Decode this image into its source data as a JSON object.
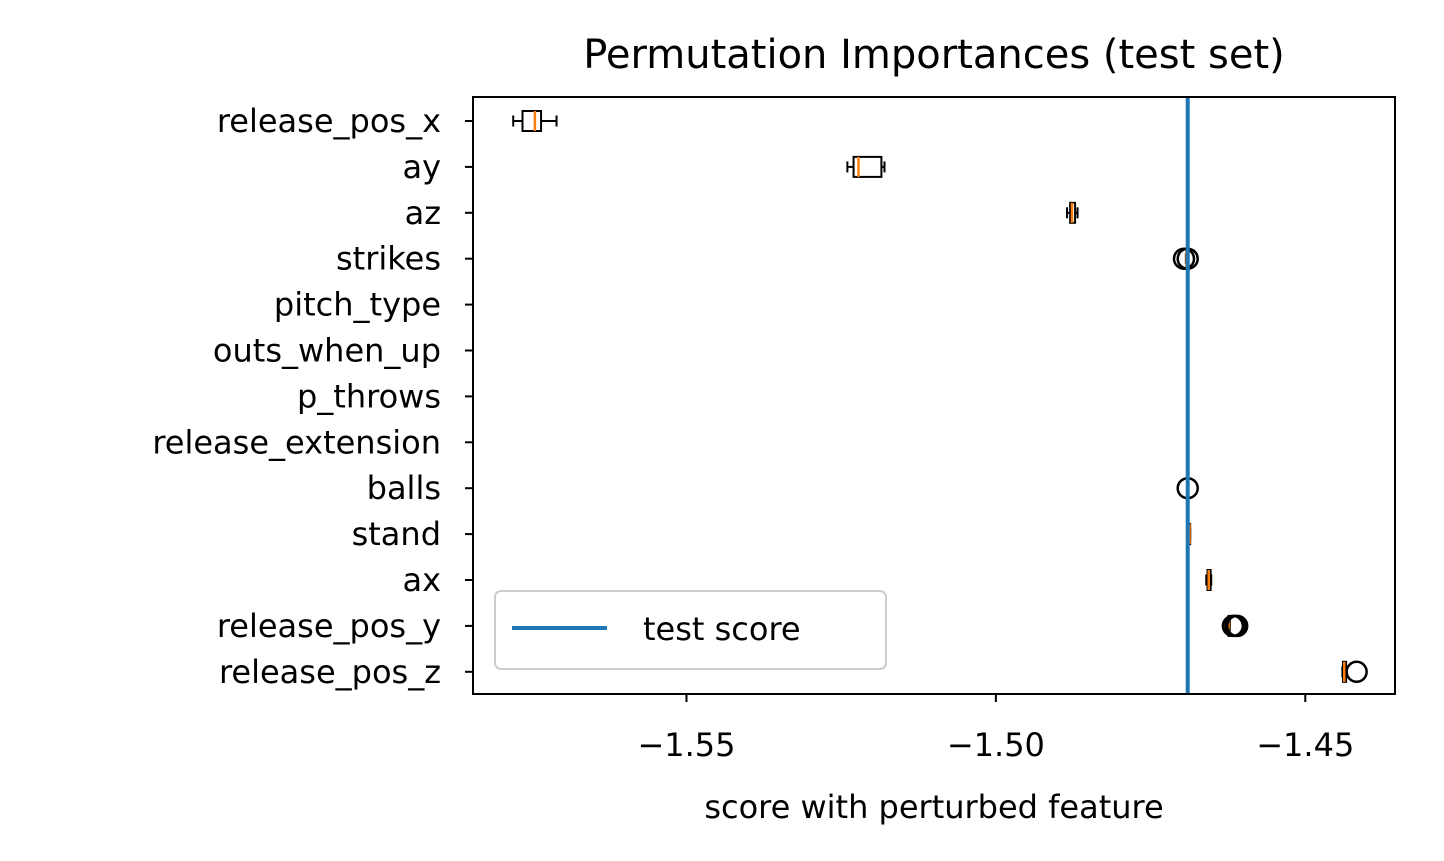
{
  "chart_data": {
    "type": "boxplot",
    "orientation": "horizontal",
    "title": "Permutation Importances (test set)",
    "xlabel": "score with perturbed feature",
    "ylabel": "",
    "xlim": [
      -1.5845,
      -1.4355
    ],
    "xticks": [
      -1.55,
      -1.5,
      -1.45
    ],
    "xtick_labels": [
      "−1.55",
      "−1.50",
      "−1.45"
    ],
    "grid": false,
    "reference_line": {
      "name": "test score",
      "value": -1.469,
      "color": "#1f77b4"
    },
    "legend": {
      "position": "lower-left",
      "entries": [
        "test score"
      ]
    },
    "median_color": "#ff7f0e",
    "features": [
      {
        "name": "release_pos_x",
        "whisker_low": -1.578,
        "q1": -1.5765,
        "median": -1.5745,
        "q3": -1.5735,
        "whisker_high": -1.571,
        "outliers": []
      },
      {
        "name": "ay",
        "whisker_low": -1.524,
        "q1": -1.523,
        "median": -1.5222,
        "q3": -1.5185,
        "whisker_high": -1.518,
        "outliers": []
      },
      {
        "name": "az",
        "whisker_low": -1.4885,
        "q1": -1.488,
        "median": -1.4877,
        "q3": -1.4872,
        "whisker_high": -1.4868,
        "outliers": []
      },
      {
        "name": "strikes",
        "whisker_low": -1.4693,
        "q1": -1.4692,
        "median": -1.4692,
        "q3": -1.4692,
        "whisker_high": -1.4692,
        "outliers": [
          -1.469,
          -1.4696
        ]
      },
      {
        "name": "pitch_type",
        "whisker_low": -1.469,
        "q1": -1.469,
        "median": -1.469,
        "q3": -1.469,
        "whisker_high": -1.469,
        "outliers": []
      },
      {
        "name": "outs_when_up",
        "whisker_low": -1.469,
        "q1": -1.469,
        "median": -1.469,
        "q3": -1.469,
        "whisker_high": -1.469,
        "outliers": []
      },
      {
        "name": "p_throws",
        "whisker_low": -1.469,
        "q1": -1.469,
        "median": -1.469,
        "q3": -1.469,
        "whisker_high": -1.469,
        "outliers": []
      },
      {
        "name": "release_extension",
        "whisker_low": -1.469,
        "q1": -1.469,
        "median": -1.469,
        "q3": -1.469,
        "whisker_high": -1.469,
        "outliers": []
      },
      {
        "name": "balls",
        "whisker_low": -1.469,
        "q1": -1.469,
        "median": -1.469,
        "q3": -1.469,
        "whisker_high": -1.469,
        "outliers": [
          -1.469
        ]
      },
      {
        "name": "stand",
        "whisker_low": -1.4687,
        "q1": -1.4687,
        "median": -1.4687,
        "q3": -1.4686,
        "whisker_high": -1.4686,
        "outliers": []
      },
      {
        "name": "ax",
        "whisker_low": -1.466,
        "q1": -1.4658,
        "median": -1.4656,
        "q3": -1.4653,
        "whisker_high": -1.4652,
        "outliers": []
      },
      {
        "name": "release_pos_y",
        "whisker_low": -1.4625,
        "q1": -1.4624,
        "median": -1.4624,
        "q3": -1.4623,
        "whisker_high": -1.4622,
        "outliers": [
          -1.4617,
          -1.4613,
          -1.461
        ]
      },
      {
        "name": "release_pos_z",
        "whisker_low": -1.444,
        "q1": -1.4439,
        "median": -1.4437,
        "q3": -1.4434,
        "whisker_high": -1.4433,
        "outliers": [
          -1.4417
        ]
      }
    ]
  }
}
